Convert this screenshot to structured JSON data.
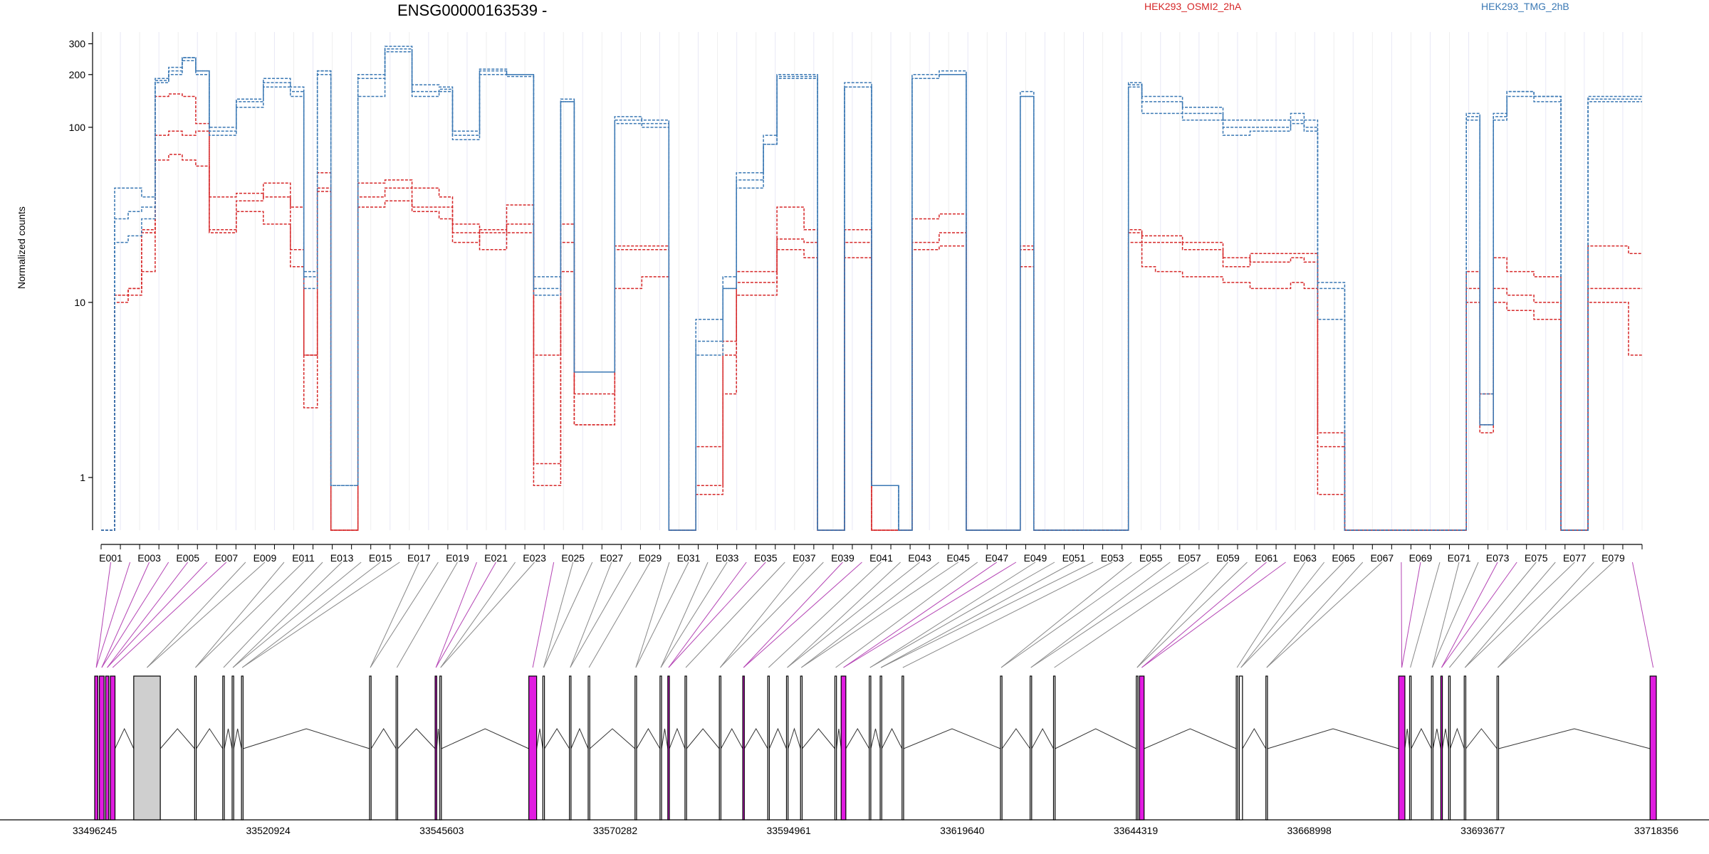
{
  "title": "ENSG00000163539 -",
  "ylabel": "Normalized counts",
  "legend": [
    {
      "name": "HEK293_OSMI2_2hA",
      "color": "#d62728"
    },
    {
      "name": "HEK293_TMG_2hB",
      "color": "#3a78b4"
    }
  ],
  "chart_data": {
    "type": "line",
    "y_scale": "log",
    "ylim": [
      0.5,
      350
    ],
    "yticks": [
      1,
      10,
      100,
      200,
      300
    ],
    "exon_labels": [
      "E001",
      "E003",
      "E005",
      "E007",
      "E009",
      "E011",
      "E013",
      "E015",
      "E017",
      "E019",
      "E021",
      "E023",
      "E025",
      "E027",
      "E029",
      "E031",
      "E033",
      "E035",
      "E037",
      "E039",
      "E041",
      "E043",
      "E045",
      "E047",
      "E049",
      "E051",
      "E053",
      "E055",
      "E057",
      "E059",
      "E061",
      "E063",
      "E065",
      "E067",
      "E069",
      "E071",
      "E073",
      "E075",
      "E077",
      "E079"
    ],
    "exon_count": 80,
    "series": [
      {
        "group": "HEK293_OSMI2_2hA",
        "color": "#d62728",
        "values": [
          0.5,
          11,
          12,
          15,
          65,
          70,
          65,
          60,
          25,
          25,
          33,
          33,
          28,
          28,
          16,
          5,
          55,
          0.5,
          0.5,
          35,
          35,
          38,
          38,
          33,
          33,
          30,
          25,
          25,
          20,
          20,
          25,
          25,
          0.9,
          0.9,
          15,
          2,
          2,
          2,
          12,
          12,
          14,
          14,
          0.5,
          0.5,
          0.9,
          0.9,
          3,
          11,
          11,
          11,
          20,
          20,
          18,
          0.5,
          0.5,
          18,
          18,
          0.5,
          0.5,
          0.5,
          20,
          20,
          21,
          21,
          0.5,
          0.5,
          0.5,
          0.5,
          16,
          0.5,
          0.5,
          0.5,
          0.5,
          0.5,
          0.5,
          0.5,
          22,
          16,
          15,
          15,
          14,
          14,
          14,
          13,
          13,
          12,
          12,
          12,
          13,
          12,
          0.8,
          0.8,
          0.5,
          0.5,
          0.5,
          0.5,
          0.5,
          0.5,
          0.5,
          0.5,
          0.5,
          10,
          2,
          10,
          9,
          9,
          8,
          8,
          0.5,
          0.5,
          10,
          10,
          10,
          5
        ]
      },
      {
        "group": "HEK293_OSMI2_2hA",
        "color": "#d62728",
        "values": [
          0.5,
          10,
          11,
          26,
          90,
          95,
          90,
          95,
          40,
          40,
          42,
          42,
          40,
          40,
          20,
          2.5,
          45,
          0.5,
          0.5,
          40,
          40,
          45,
          45,
          35,
          35,
          35,
          28,
          28,
          25,
          25,
          28,
          28,
          1.2,
          1.2,
          22,
          3,
          3,
          3,
          20,
          20,
          20,
          20,
          0.5,
          0.5,
          1.5,
          1.5,
          5,
          13,
          13,
          13,
          23,
          23,
          22,
          0.5,
          0.5,
          22,
          22,
          0.5,
          0.5,
          0.5,
          22,
          22,
          25,
          25,
          0.5,
          0.5,
          0.5,
          0.5,
          20,
          0.5,
          0.5,
          0.5,
          0.5,
          0.5,
          0.5,
          0.5,
          25,
          22,
          22,
          22,
          20,
          20,
          20,
          18,
          18,
          17,
          17,
          17,
          18,
          17,
          1.5,
          1.5,
          0.5,
          0.5,
          0.5,
          0.5,
          0.5,
          0.5,
          0.5,
          0.5,
          0.5,
          12,
          3,
          12,
          11,
          11,
          10,
          10,
          0.5,
          0.5,
          12,
          12,
          12,
          12
        ]
      },
      {
        "group": "HEK293_OSMI2_2hA",
        "color": "#d62728",
        "values": [
          0.5,
          11,
          12,
          25,
          150,
          155,
          150,
          105,
          26,
          26,
          38,
          38,
          48,
          48,
          35,
          5,
          43,
          0.5,
          0.5,
          48,
          48,
          50,
          50,
          45,
          45,
          40,
          22,
          22,
          26,
          26,
          36,
          36,
          5,
          5,
          28,
          2,
          2,
          2,
          21,
          21,
          21,
          21,
          0.5,
          0.5,
          0.8,
          0.8,
          6,
          15,
          15,
          15,
          35,
          35,
          26,
          0.5,
          0.5,
          26,
          26,
          0.5,
          0.5,
          0.5,
          30,
          30,
          32,
          32,
          0.5,
          0.5,
          0.5,
          0.5,
          21,
          0.5,
          0.5,
          0.5,
          0.5,
          0.5,
          0.5,
          0.5,
          26,
          24,
          24,
          24,
          22,
          22,
          22,
          16,
          16,
          19,
          19,
          19,
          19,
          19,
          1.8,
          1.8,
          0.5,
          0.5,
          0.5,
          0.5,
          0.5,
          0.5,
          0.5,
          0.5,
          0.5,
          15,
          1.8,
          18,
          15,
          15,
          14,
          14,
          0.5,
          0.5,
          21,
          21,
          21,
          19
        ]
      },
      {
        "group": "HEK293_TMG_2hB",
        "color": "#3a78b4",
        "values": [
          0.5,
          22,
          24,
          30,
          190,
          200,
          250,
          210,
          95,
          95,
          140,
          140,
          180,
          180,
          160,
          15,
          200,
          0.9,
          0.9,
          200,
          200,
          280,
          280,
          175,
          175,
          170,
          90,
          90,
          200,
          200,
          195,
          195,
          12,
          12,
          140,
          4,
          4,
          4,
          110,
          110,
          100,
          100,
          0.5,
          0.5,
          8,
          8,
          14,
          50,
          50,
          80,
          200,
          200,
          200,
          0.5,
          0.5,
          170,
          170,
          0.9,
          0.9,
          0.5,
          190,
          190,
          210,
          210,
          0.5,
          0.5,
          0.5,
          0.5,
          160,
          0.5,
          0.5,
          0.5,
          0.5,
          0.5,
          0.5,
          0.5,
          180,
          140,
          140,
          140,
          120,
          120,
          120,
          100,
          100,
          100,
          100,
          100,
          110,
          100,
          12,
          12,
          0.5,
          0.5,
          0.5,
          0.5,
          0.5,
          0.5,
          0.5,
          0.5,
          0.5,
          110,
          2,
          110,
          150,
          150,
          140,
          140,
          0.5,
          0.5,
          140,
          140,
          140,
          140
        ]
      },
      {
        "group": "HEK293_TMG_2hB",
        "color": "#3a78b4",
        "values": [
          0.5,
          30,
          33,
          35,
          185,
          210,
          240,
          210,
          100,
          100,
          145,
          145,
          190,
          190,
          170,
          14,
          210,
          0.9,
          0.9,
          190,
          190,
          290,
          290,
          160,
          160,
          165,
          95,
          95,
          210,
          210,
          200,
          200,
          14,
          14,
          145,
          4,
          4,
          4,
          115,
          115,
          110,
          110,
          0.5,
          0.5,
          6,
          6,
          12,
          55,
          55,
          90,
          195,
          195,
          195,
          0.5,
          0.5,
          180,
          180,
          0.9,
          0.9,
          0.5,
          200,
          200,
          200,
          200,
          0.5,
          0.5,
          0.5,
          0.5,
          150,
          0.5,
          0.5,
          0.5,
          0.5,
          0.5,
          0.5,
          0.5,
          170,
          150,
          150,
          150,
          130,
          130,
          130,
          110,
          110,
          110,
          110,
          110,
          120,
          110,
          13,
          13,
          0.5,
          0.5,
          0.5,
          0.5,
          0.5,
          0.5,
          0.5,
          0.5,
          0.5,
          120,
          3,
          120,
          160,
          160,
          150,
          150,
          0.5,
          0.5,
          150,
          150,
          150,
          150
        ]
      },
      {
        "group": "HEK293_TMG_2hB",
        "color": "#3a78b4",
        "values": [
          0.5,
          45,
          45,
          40,
          180,
          220,
          250,
          200,
          90,
          90,
          130,
          130,
          170,
          170,
          150,
          12,
          210,
          0.9,
          0.9,
          150,
          150,
          270,
          270,
          150,
          150,
          160,
          85,
          85,
          215,
          215,
          200,
          200,
          11,
          11,
          140,
          4,
          4,
          4,
          105,
          105,
          105,
          105,
          0.5,
          0.5,
          5,
          5,
          12,
          45,
          45,
          80,
          190,
          190,
          190,
          0.5,
          0.5,
          170,
          170,
          0.9,
          0.9,
          0.5,
          190,
          190,
          200,
          200,
          0.5,
          0.5,
          0.5,
          0.5,
          150,
          0.5,
          0.5,
          0.5,
          0.5,
          0.5,
          0.5,
          0.5,
          175,
          120,
          120,
          120,
          110,
          110,
          110,
          90,
          90,
          95,
          95,
          95,
          105,
          95,
          8,
          8,
          0.5,
          0.5,
          0.5,
          0.5,
          0.5,
          0.5,
          0.5,
          0.5,
          0.5,
          115,
          2,
          115,
          160,
          160,
          150,
          150,
          0.5,
          0.5,
          145,
          145,
          145,
          145
        ]
      }
    ],
    "genomic_ticks": [
      "33496245",
      "33520924",
      "33545603",
      "33570282",
      "33594961",
      "33619640",
      "33644319",
      "33668998",
      "33693677",
      "33718356"
    ]
  },
  "gene_model": {
    "exons": [
      {
        "start": 0.0,
        "end": 0.002,
        "color": "#e01ce0"
      },
      {
        "start": 0.003,
        "end": 0.006,
        "color": "#e01ce0"
      },
      {
        "start": 0.007,
        "end": 0.009,
        "color": "#e01ce0"
      },
      {
        "start": 0.01,
        "end": 0.013,
        "color": "#e01ce0"
      },
      {
        "start": 0.025,
        "end": 0.042,
        "color": "#cfcfcf"
      },
      {
        "start": 0.064,
        "end": 0.065,
        "color": "#ffffff"
      },
      {
        "start": 0.082,
        "end": 0.083,
        "color": "#ffffff"
      },
      {
        "start": 0.088,
        "end": 0.089,
        "color": "#ffffff"
      },
      {
        "start": 0.094,
        "end": 0.095,
        "color": "#ffffff"
      },
      {
        "start": 0.176,
        "end": 0.177,
        "color": "#ffffff"
      },
      {
        "start": 0.193,
        "end": 0.194,
        "color": "#ffffff"
      },
      {
        "start": 0.218,
        "end": 0.219,
        "color": "#e01ce0"
      },
      {
        "start": 0.221,
        "end": 0.222,
        "color": "#ffffff"
      },
      {
        "start": 0.278,
        "end": 0.283,
        "color": "#e01ce0"
      },
      {
        "start": 0.287,
        "end": 0.288,
        "color": "#ffffff"
      },
      {
        "start": 0.304,
        "end": 0.305,
        "color": "#ffffff"
      },
      {
        "start": 0.316,
        "end": 0.317,
        "color": "#ffffff"
      },
      {
        "start": 0.346,
        "end": 0.347,
        "color": "#ffffff"
      },
      {
        "start": 0.362,
        "end": 0.363,
        "color": "#ffffff"
      },
      {
        "start": 0.367,
        "end": 0.368,
        "color": "#e01ce0"
      },
      {
        "start": 0.378,
        "end": 0.379,
        "color": "#ffffff"
      },
      {
        "start": 0.4,
        "end": 0.401,
        "color": "#ffffff"
      },
      {
        "start": 0.415,
        "end": 0.416,
        "color": "#e01ce0"
      },
      {
        "start": 0.431,
        "end": 0.432,
        "color": "#ffffff"
      },
      {
        "start": 0.443,
        "end": 0.444,
        "color": "#ffffff"
      },
      {
        "start": 0.452,
        "end": 0.453,
        "color": "#ffffff"
      },
      {
        "start": 0.474,
        "end": 0.475,
        "color": "#ffffff"
      },
      {
        "start": 0.478,
        "end": 0.481,
        "color": "#e01ce0"
      },
      {
        "start": 0.496,
        "end": 0.497,
        "color": "#ffffff"
      },
      {
        "start": 0.503,
        "end": 0.504,
        "color": "#ffffff"
      },
      {
        "start": 0.517,
        "end": 0.518,
        "color": "#ffffff"
      },
      {
        "start": 0.58,
        "end": 0.581,
        "color": "#ffffff"
      },
      {
        "start": 0.599,
        "end": 0.6,
        "color": "#ffffff"
      },
      {
        "start": 0.614,
        "end": 0.615,
        "color": "#ffffff"
      },
      {
        "start": 0.667,
        "end": 0.668,
        "color": "#ffffff"
      },
      {
        "start": 0.669,
        "end": 0.672,
        "color": "#e01ce0"
      },
      {
        "start": 0.731,
        "end": 0.732,
        "color": "#ffffff"
      },
      {
        "start": 0.733,
        "end": 0.735,
        "color": "#ffffff"
      },
      {
        "start": 0.75,
        "end": 0.751,
        "color": "#ffffff"
      },
      {
        "start": 0.835,
        "end": 0.839,
        "color": "#e01ce0"
      },
      {
        "start": 0.842,
        "end": 0.843,
        "color": "#ffffff"
      },
      {
        "start": 0.856,
        "end": 0.857,
        "color": "#ffffff"
      },
      {
        "start": 0.862,
        "end": 0.863,
        "color": "#e01ce0"
      },
      {
        "start": 0.867,
        "end": 0.868,
        "color": "#ffffff"
      },
      {
        "start": 0.877,
        "end": 0.878,
        "color": "#ffffff"
      },
      {
        "start": 0.898,
        "end": 0.899,
        "color": "#ffffff"
      },
      {
        "start": 0.996,
        "end": 1.0,
        "color": "#e01ce0"
      }
    ]
  }
}
